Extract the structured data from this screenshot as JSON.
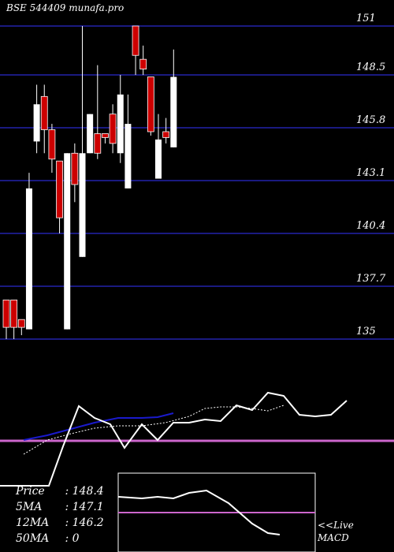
{
  "site_label": "BSE 544409 munafa.pro",
  "stats": [
    {
      "key": "Price",
      "sep": ":",
      "value": "148.4"
    },
    {
      "key": "5MA",
      "sep": ":",
      "value": "147.1"
    },
    {
      "key": "12MA",
      "sep": ":",
      "value": "146.2"
    },
    {
      "key": "50MA",
      "sep": ":",
      "value": "0"
    }
  ],
  "macd_label": {
    "line1": "<<Live",
    "line2": "MACD"
  },
  "colors": {
    "up": "#ffffff",
    "down": "#cc0000",
    "grid": "#1a1a80",
    "ma_line": "#1a1acc",
    "signal_line": "#cc66cc",
    "background": "#000000"
  },
  "chart_data": {
    "type": "candlestick",
    "ylim": [
      135,
      151
    ],
    "y_ticks": [
      "151",
      "148.5",
      "145.8",
      "143.1",
      "140.4",
      "137.7",
      "135"
    ],
    "grid": true,
    "candles": [
      {
        "o": 137,
        "h": 137,
        "l": 135,
        "c": 135.6
      },
      {
        "o": 137,
        "h": 137,
        "l": 135,
        "c": 135.6
      },
      {
        "o": 136,
        "h": 136,
        "l": 135.2,
        "c": 135.6
      },
      {
        "o": 135.5,
        "h": 143.5,
        "l": 135.5,
        "c": 142.7
      },
      {
        "o": 145.1,
        "h": 148.0,
        "l": 144.5,
        "c": 147.0
      },
      {
        "o": 147.4,
        "h": 148.0,
        "l": 144.5,
        "c": 145.7
      },
      {
        "o": 145.7,
        "h": 146.0,
        "l": 143.5,
        "c": 144.2
      },
      {
        "o": 144.1,
        "h": 144.1,
        "l": 140.4,
        "c": 141.2
      },
      {
        "o": 135.5,
        "h": 144.5,
        "l": 135.5,
        "c": 144.5
      },
      {
        "o": 144.5,
        "h": 145.0,
        "l": 142.0,
        "c": 142.9
      },
      {
        "o": 139.2,
        "h": 151.0,
        "l": 139.2,
        "c": 144.5
      },
      {
        "o": 144.5,
        "h": 146.5,
        "l": 144.5,
        "c": 146.5
      },
      {
        "o": 145.5,
        "h": 149.0,
        "l": 144.2,
        "c": 144.5
      },
      {
        "o": 145.5,
        "h": 145.5,
        "l": 145.0,
        "c": 145.3
      },
      {
        "o": 146.5,
        "h": 147.0,
        "l": 144.5,
        "c": 145.0
      },
      {
        "o": 144.5,
        "h": 148.5,
        "l": 144.0,
        "c": 147.5
      },
      {
        "o": 142.7,
        "h": 147.5,
        "l": 142.7,
        "c": 146.0
      },
      {
        "o": 151.0,
        "h": 151.0,
        "l": 148.5,
        "c": 149.5
      },
      {
        "o": 149.3,
        "h": 150.0,
        "l": 148.5,
        "c": 148.8
      },
      {
        "o": 148.4,
        "h": 148.4,
        "l": 145.4,
        "c": 145.6
      },
      {
        "o": 143.2,
        "h": 146.5,
        "l": 143.2,
        "c": 145.2
      },
      {
        "o": 145.6,
        "h": 146.3,
        "l": 145.0,
        "c": 145.3
      },
      {
        "o": 144.8,
        "h": 149.8,
        "l": 144.8,
        "c": 148.4
      }
    ],
    "oscillator_line": [
      {
        "x": 0,
        "y": 616
      },
      {
        "x": 30,
        "y": 616
      },
      {
        "x": 62,
        "y": 616
      },
      {
        "x": 80,
        "y": 566
      },
      {
        "x": 100,
        "y": 515
      },
      {
        "x": 120,
        "y": 530
      },
      {
        "x": 140,
        "y": 538
      },
      {
        "x": 158,
        "y": 568
      },
      {
        "x": 180,
        "y": 538
      },
      {
        "x": 200,
        "y": 558
      },
      {
        "x": 220,
        "y": 536
      },
      {
        "x": 240,
        "y": 536
      },
      {
        "x": 260,
        "y": 532
      },
      {
        "x": 280,
        "y": 534
      },
      {
        "x": 300,
        "y": 514
      },
      {
        "x": 320,
        "y": 520
      },
      {
        "x": 340,
        "y": 498
      },
      {
        "x": 360,
        "y": 502
      },
      {
        "x": 380,
        "y": 526
      },
      {
        "x": 400,
        "y": 528
      },
      {
        "x": 420,
        "y": 526
      },
      {
        "x": 440,
        "y": 508
      }
    ],
    "oscillator_dotted": [
      {
        "x": 30,
        "y": 576
      },
      {
        "x": 60,
        "y": 558
      },
      {
        "x": 90,
        "y": 550
      },
      {
        "x": 120,
        "y": 543
      },
      {
        "x": 150,
        "y": 540
      },
      {
        "x": 180,
        "y": 540
      },
      {
        "x": 210,
        "y": 536
      },
      {
        "x": 240,
        "y": 528
      },
      {
        "x": 260,
        "y": 518
      },
      {
        "x": 280,
        "y": 516
      },
      {
        "x": 300,
        "y": 516
      },
      {
        "x": 320,
        "y": 518
      },
      {
        "x": 340,
        "y": 521
      },
      {
        "x": 360,
        "y": 514
      }
    ],
    "ma_line": [
      {
        "x": 30,
        "y": 558
      },
      {
        "x": 60,
        "y": 552
      },
      {
        "x": 90,
        "y": 544
      },
      {
        "x": 120,
        "y": 536
      },
      {
        "x": 150,
        "y": 530
      },
      {
        "x": 180,
        "y": 530
      },
      {
        "x": 200,
        "y": 529
      },
      {
        "x": 220,
        "y": 524
      }
    ],
    "signal_level": 559,
    "macd_line": [
      {
        "x": 150,
        "y": 630
      },
      {
        "x": 180,
        "y": 632
      },
      {
        "x": 200,
        "y": 630
      },
      {
        "x": 220,
        "y": 632
      },
      {
        "x": 240,
        "y": 625
      },
      {
        "x": 262,
        "y": 622
      },
      {
        "x": 290,
        "y": 638
      },
      {
        "x": 320,
        "y": 664
      },
      {
        "x": 340,
        "y": 676
      },
      {
        "x": 355,
        "y": 678
      }
    ],
    "macd_signal": 650
  }
}
